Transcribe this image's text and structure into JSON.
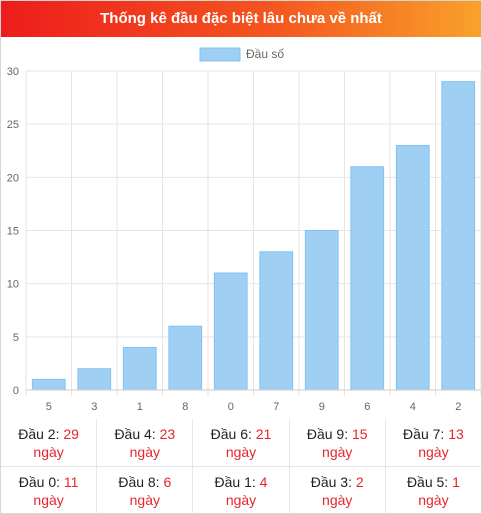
{
  "header": {
    "title": "Thống kê đầu đặc biệt lâu chưa về nhất"
  },
  "colors": {
    "bar": "#9fcff3",
    "bar_border": "#85c1ef",
    "grid": "#e5e5e5",
    "accent_red": "#e8242b"
  },
  "chart_data": {
    "type": "bar",
    "categories": [
      "5",
      "3",
      "1",
      "8",
      "0",
      "7",
      "9",
      "6",
      "4",
      "2"
    ],
    "series": [
      {
        "name": "Đầu số",
        "values": [
          1,
          2,
          4,
          6,
          11,
          13,
          15,
          21,
          23,
          29
        ]
      }
    ],
    "yticks": [
      "0",
      "5",
      "10",
      "15",
      "20",
      "25",
      "30"
    ],
    "ylim": [
      0,
      30
    ],
    "legend": "top-center",
    "grid": true
  },
  "stats": {
    "row1": [
      {
        "label": "Đầu 2:",
        "value": "29",
        "unit": "ngày"
      },
      {
        "label": "Đầu 4:",
        "value": "23",
        "unit": "ngày"
      },
      {
        "label": "Đầu 6:",
        "value": "21",
        "unit": "ngày"
      },
      {
        "label": "Đầu 9:",
        "value": "15",
        "unit": "ngày"
      },
      {
        "label": "Đầu 7:",
        "value": "13",
        "unit": "ngày"
      }
    ],
    "row2": [
      {
        "label": "Đầu 0:",
        "value": "11",
        "unit": "ngày"
      },
      {
        "label": "Đầu 8:",
        "value": "6",
        "unit": "ngày"
      },
      {
        "label": "Đầu 1:",
        "value": "4",
        "unit": "ngày"
      },
      {
        "label": "Đầu 3:",
        "value": "2",
        "unit": "ngày"
      },
      {
        "label": "Đầu 5:",
        "value": "1",
        "unit": "ngày"
      }
    ]
  }
}
